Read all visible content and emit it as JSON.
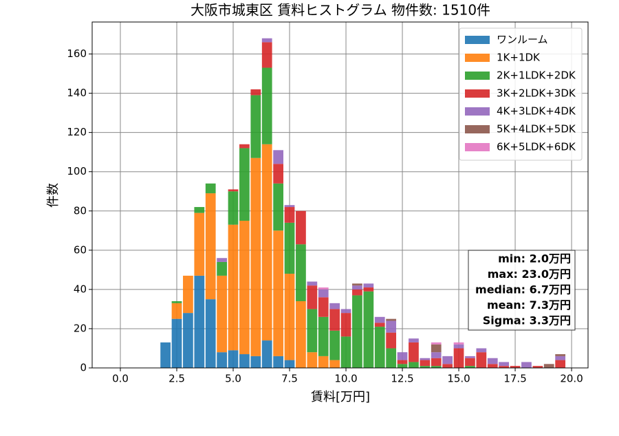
{
  "chart_data": {
    "type": "histogram",
    "title": "大阪市城東区 賃料ヒストグラム  物件数: 1510件",
    "xlabel": "賃料[万円]",
    "ylabel": "件数",
    "bins": [
      1.75,
      2.25,
      2.75,
      3.25,
      3.75,
      4.25,
      4.75,
      5.25,
      5.75,
      6.25,
      6.75,
      7.25,
      7.75,
      8.25,
      8.75,
      9.25,
      9.75,
      10.25,
      10.75,
      11.25,
      11.75,
      12.25,
      12.75,
      13.25,
      13.75,
      14.25,
      14.75,
      15.25,
      15.75,
      16.25,
      16.75,
      17.25,
      17.75,
      18.25,
      18.75,
      19.25,
      19.75
    ],
    "stacked": true,
    "rwidth": 0.9,
    "opacity": 0.9,
    "series": [
      {
        "name": "ワンルーム",
        "color": "#1f77b4",
        "values": [
          13,
          25,
          28,
          47,
          35,
          8,
          9,
          7,
          6,
          14,
          6,
          4,
          0,
          0,
          0,
          0,
          0,
          0,
          0,
          0,
          0,
          0,
          0,
          0,
          0,
          0,
          0,
          0,
          0,
          0,
          0,
          0,
          0,
          0,
          0,
          0
        ]
      },
      {
        "name": "1K+1DK",
        "color": "#ff7f0e",
        "values": [
          0,
          8,
          19,
          32,
          54,
          39,
          64,
          68,
          101,
          100,
          64,
          44,
          34,
          8,
          6,
          4,
          0,
          0,
          0,
          0,
          0,
          0,
          0,
          0,
          0,
          0,
          0,
          0,
          0,
          0,
          0,
          0,
          0,
          0,
          0,
          0
        ]
      },
      {
        "name": "2K+1LDK+2DK",
        "color": "#2ca02c",
        "values": [
          0,
          1,
          0,
          3,
          5,
          7,
          17,
          37,
          32,
          39,
          24,
          26,
          29,
          22,
          20,
          15,
          16,
          37,
          39,
          21,
          10,
          2,
          3,
          1,
          1,
          0,
          0,
          1,
          0,
          0,
          0,
          0,
          0,
          0,
          0,
          0
        ]
      },
      {
        "name": "3K+2LDK+3DK",
        "color": "#d62728",
        "values": [
          0,
          0,
          0,
          0,
          0,
          0,
          1,
          2,
          3,
          13,
          10,
          8,
          17,
          12,
          10,
          11,
          12,
          3,
          2,
          2,
          8,
          2,
          10,
          3,
          4,
          2,
          10,
          4,
          8,
          2,
          1,
          1,
          0,
          1,
          0,
          4
        ]
      },
      {
        "name": "4K+3LDK+4DK",
        "color": "#9467bd",
        "values": [
          0,
          0,
          0,
          0,
          0,
          2,
          0,
          0,
          0,
          2,
          7,
          1,
          0,
          2,
          4,
          3,
          2,
          2,
          2,
          3,
          6,
          4,
          2,
          1,
          3,
          4,
          2,
          1,
          2,
          3,
          2,
          0,
          3,
          0,
          0,
          2
        ]
      },
      {
        "name": "5K+4LDK+5DK",
        "color": "#8c564b",
        "values": [
          0,
          0,
          0,
          0,
          0,
          0,
          0,
          0,
          0,
          0,
          0,
          0,
          0,
          0,
          0,
          0,
          0,
          1,
          0,
          0,
          1,
          0,
          0,
          0,
          4,
          0,
          0,
          0,
          0,
          0,
          0,
          0,
          0,
          0,
          2,
          1
        ]
      },
      {
        "name": "6K+5LDK+6DK",
        "color": "#e377c2",
        "values": [
          0,
          0,
          0,
          0,
          0,
          0,
          0,
          0,
          0,
          0,
          0,
          0,
          0,
          0,
          1,
          0,
          0,
          0,
          0,
          0,
          0,
          0,
          0,
          0,
          1,
          0,
          1,
          0,
          0,
          0,
          0,
          0,
          0,
          0,
          0,
          0
        ]
      }
    ],
    "xlim": [
      -1.25,
      20.73
    ],
    "ylim": [
      0,
      176.3
    ],
    "xticks": [
      {
        "value": 0,
        "label": "0.0"
      },
      2.5,
      {
        "value": 5,
        "label": "5.0"
      },
      7.5,
      {
        "value": 10,
        "label": "10.0"
      },
      12.5,
      {
        "value": 15,
        "label": "15.0"
      },
      17.5,
      {
        "value": 20,
        "label": "20.0"
      }
    ],
    "yticks": [
      0,
      20,
      40,
      60,
      80,
      100,
      120,
      140,
      160
    ],
    "grid": true,
    "legend": "upper right",
    "annotation": [
      "min: 2.0万円",
      "max: 23.0万円",
      "median: 6.7万円",
      "mean: 7.3万円",
      "Sigma: 3.3万円"
    ]
  }
}
